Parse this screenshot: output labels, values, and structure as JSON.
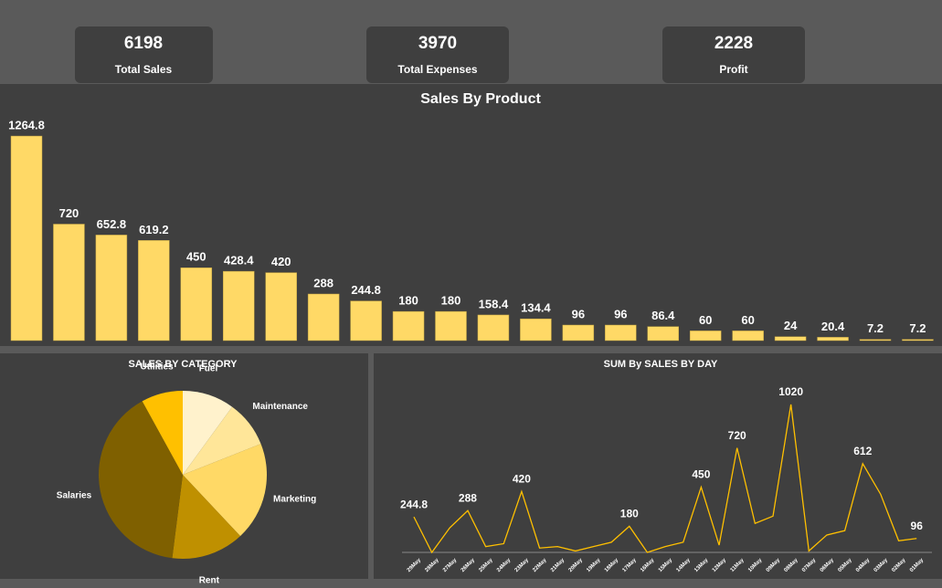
{
  "kpis": [
    {
      "value": 6198,
      "label": "Total Sales"
    },
    {
      "value": 3970,
      "label": "Total Expenses"
    },
    {
      "value": 2228,
      "label": "Profit"
    }
  ],
  "chart_data": [
    {
      "type": "bar",
      "title": "Sales By Product",
      "categories": [
        null,
        null,
        null,
        null,
        null,
        null,
        null,
        null,
        null,
        null,
        null,
        null,
        null,
        null,
        null,
        null,
        null,
        null,
        null,
        null,
        null,
        null
      ],
      "values": [
        1264.8,
        720,
        652.8,
        619.2,
        450,
        428.4,
        420,
        288,
        244.8,
        180,
        180,
        158.4,
        134.4,
        96,
        96,
        86.4,
        60,
        60,
        24,
        20.4,
        7.2,
        7.2
      ],
      "color": "#ffd966"
    },
    {
      "type": "pie",
      "title": "SALES BY CATEGORY",
      "categories": [
        "Fuel",
        "Maintenance",
        "Marketing",
        "Rent",
        "Salaries",
        "Utilities"
      ],
      "values": [
        10,
        9,
        19,
        14,
        40,
        8
      ],
      "colors": [
        "#fff2cc",
        "#ffe699",
        "#ffd966",
        "#bf9000",
        "#7f6000",
        "#ffc000"
      ]
    },
    {
      "type": "line",
      "title": "SUM By SALES BY DAY",
      "categories": [
        "29May",
        "28May",
        "27May",
        "26May",
        "25May",
        "24May",
        "23May",
        "22May",
        "21May",
        "20May",
        "19May",
        "18May",
        "17May",
        "16May",
        "15May",
        "14May",
        "13May",
        "12May",
        "11May",
        "10May",
        "09May",
        "08May",
        "07May",
        "06May",
        "05May",
        "04May",
        "03May",
        "02May",
        "01May"
      ],
      "values": [
        244.8,
        0,
        170,
        288,
        40,
        60,
        420,
        30,
        40,
        10,
        40,
        70,
        180,
        0,
        40,
        70,
        450,
        50,
        720,
        200,
        250,
        1020,
        10,
        120,
        150,
        612,
        400,
        80,
        96
      ],
      "value_labels": [
        "244.8",
        null,
        null,
        "288",
        null,
        null,
        "420",
        null,
        null,
        null,
        null,
        null,
        "180",
        null,
        null,
        null,
        "450",
        null,
        "720",
        null,
        null,
        "1020",
        null,
        null,
        null,
        "612",
        null,
        null,
        "96"
      ],
      "color": "#ffc000"
    }
  ]
}
